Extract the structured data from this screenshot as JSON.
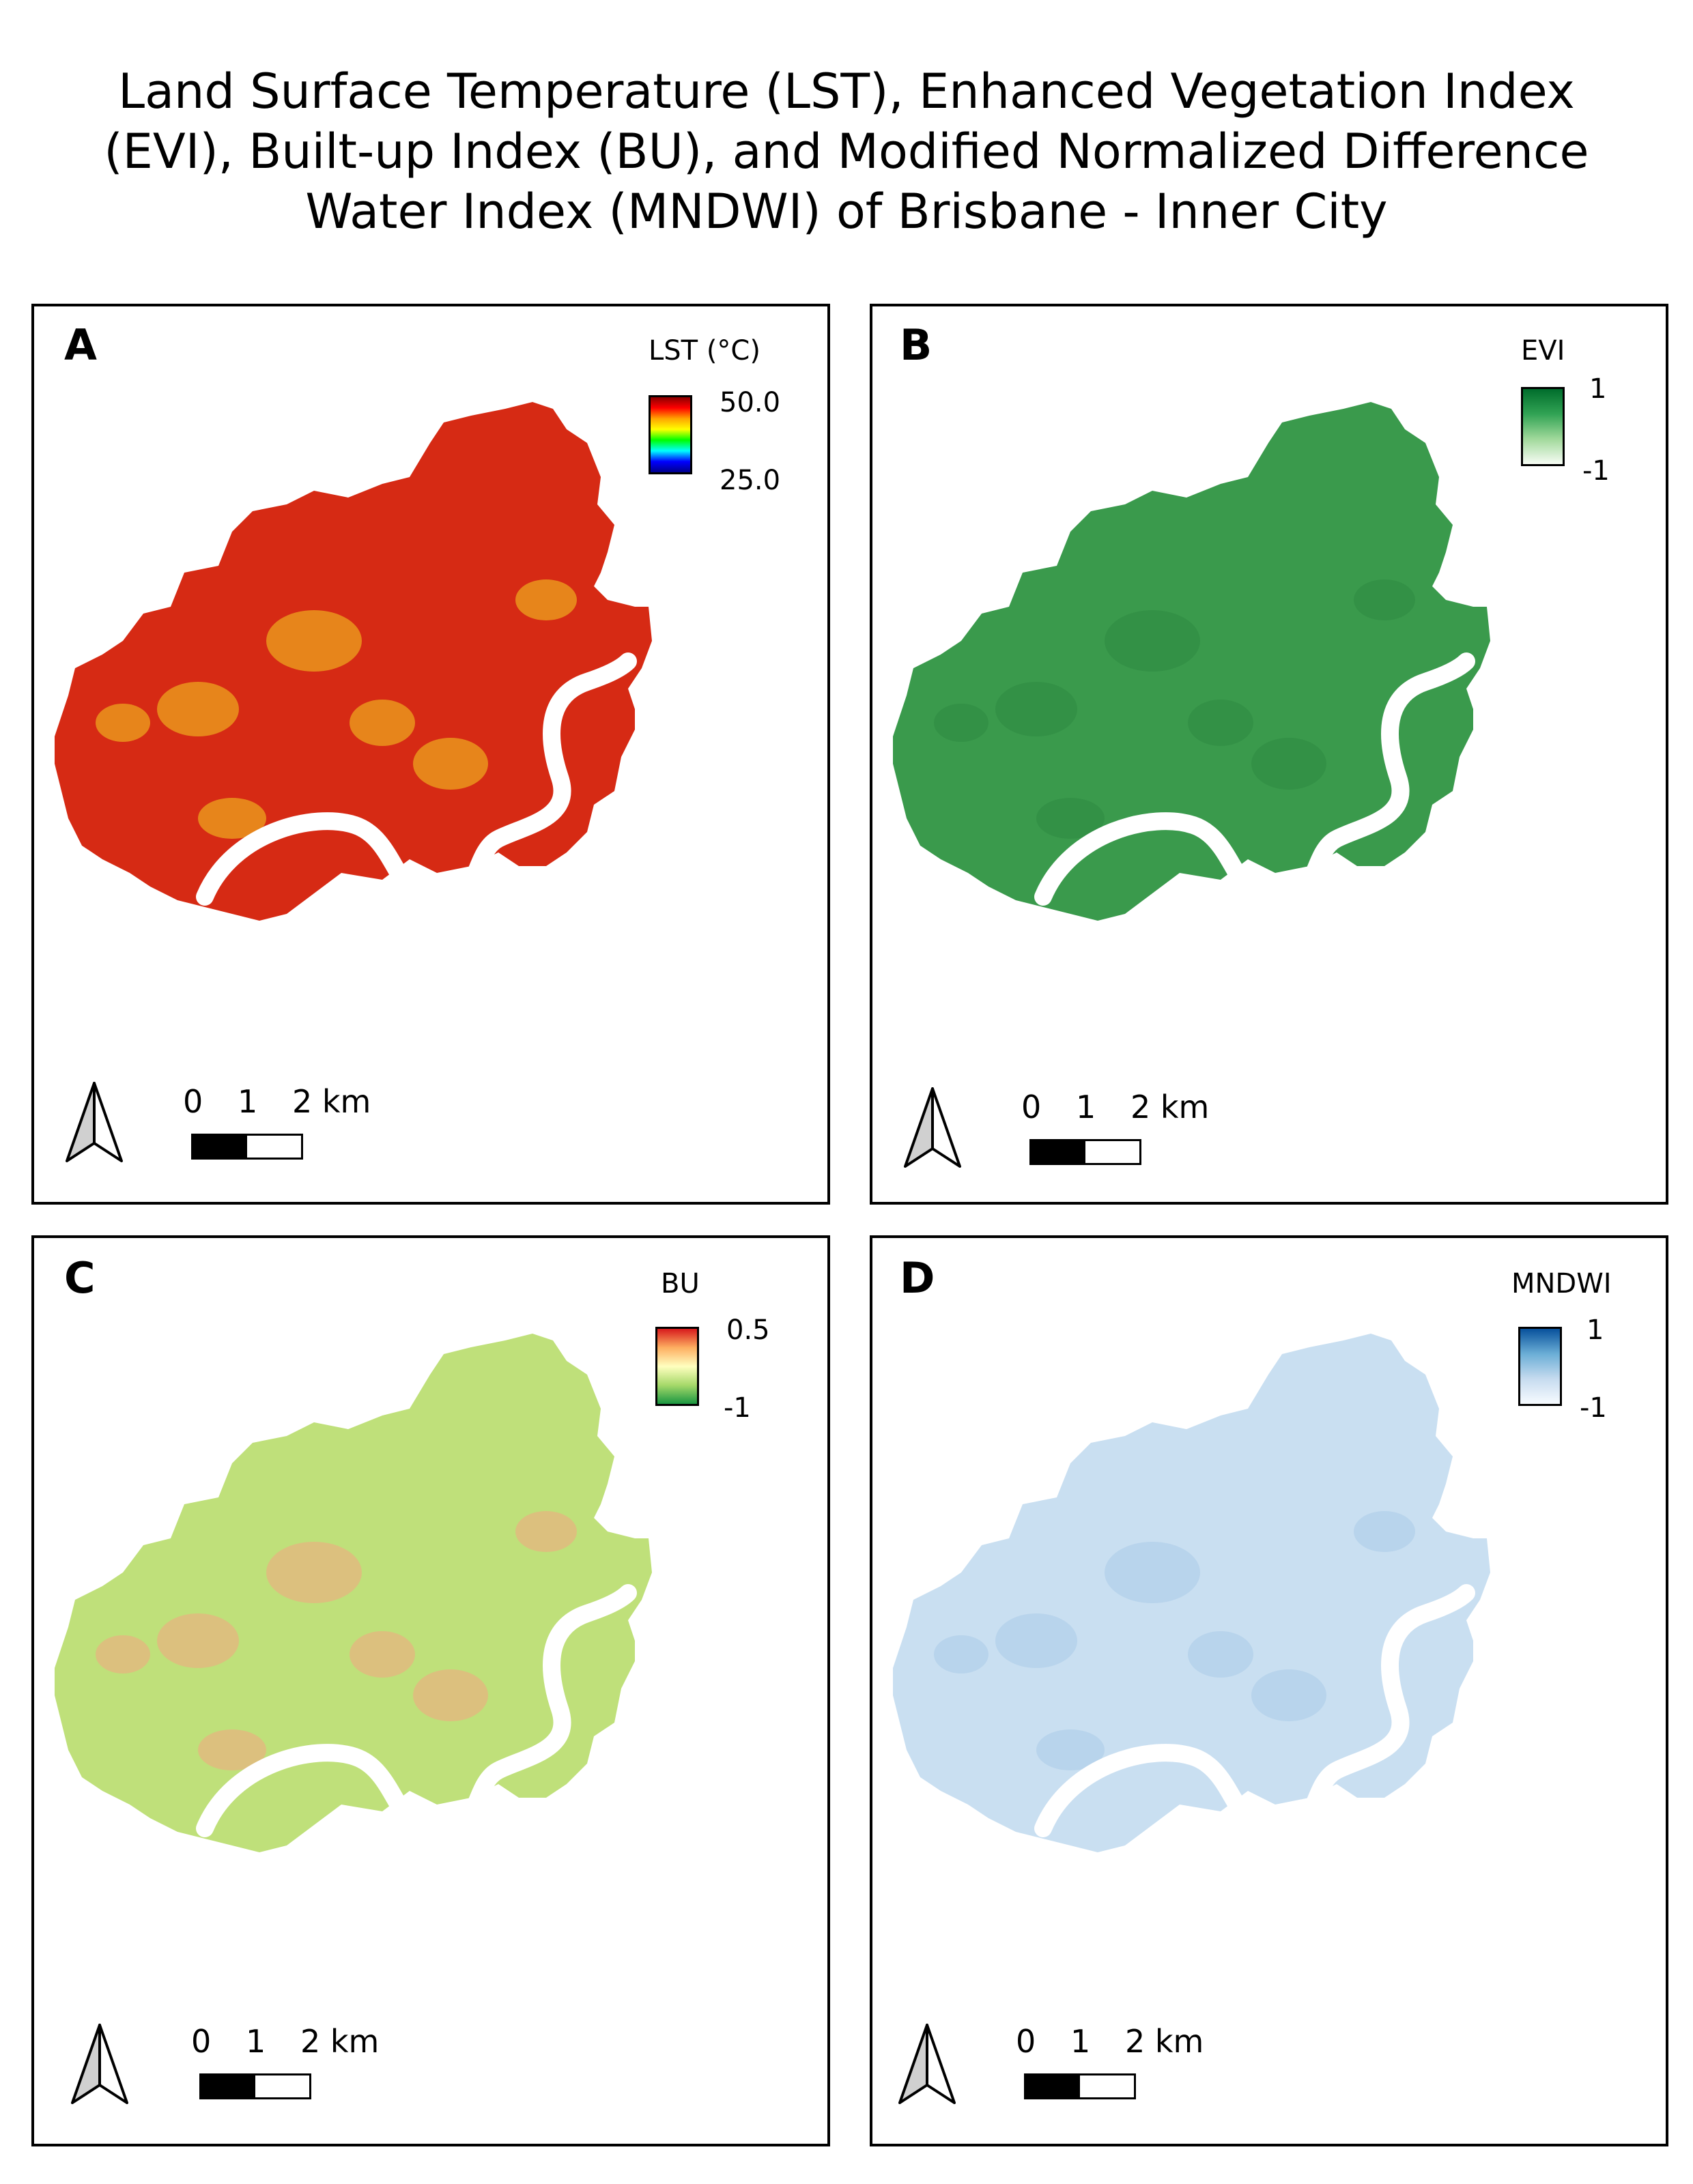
{
  "title_lines": [
    "Land Surface Temperature (LST), Enhanced Vegetation Index",
    "(EVI), Built-up Index (BU), and Modified Normalized Difference",
    "Water Index (MNDWI) of Brisbane - Inner City"
  ],
  "panels": [
    {
      "label": "A",
      "legend_title": "LST (°C)",
      "max": "50.0",
      "min": "25.0",
      "ramp": [
        "#8b0000",
        "#ff0000",
        "#ffa500",
        "#ffff00",
        "#00ff00",
        "#00ffff",
        "#0000ff",
        "#00008b"
      ],
      "map_fill": "#d62a14",
      "map_accent": "#f5d020"
    },
    {
      "label": "B",
      "legend_title": "EVI",
      "max": "1",
      "min": "-1",
      "ramp": [
        "#006d2c",
        "#31a354",
        "#a1d99b",
        "#f7fcf5"
      ],
      "map_fill": "#3a9a4c",
      "map_accent": "#2e8a42"
    },
    {
      "label": "C",
      "legend_title": "BU",
      "max": "0.5",
      "min": "-1",
      "ramp": [
        "#d7191c",
        "#fdae61",
        "#ffffbf",
        "#a6d96a",
        "#1a9641"
      ],
      "map_fill": "#bfe07a",
      "map_accent": "#f4a582"
    },
    {
      "label": "D",
      "legend_title": "MNDWI",
      "max": "1",
      "min": "-1",
      "ramp": [
        "#08519c",
        "#6baed6",
        "#c6dbef",
        "#f7fbff"
      ],
      "map_fill": "#c9dff1",
      "map_accent": "#a9cbe8"
    }
  ],
  "scale": {
    "n0": "0",
    "n1": "1",
    "n2": "2 km"
  }
}
